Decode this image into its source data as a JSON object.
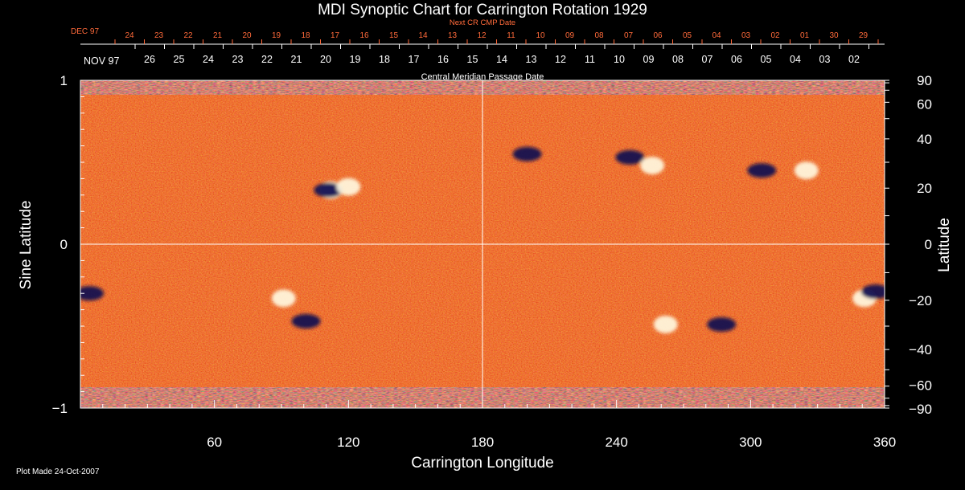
{
  "chart_data": {
    "type": "heatmap",
    "title": "MDI Synoptic Chart for Carrington Rotation 1929",
    "xlabel": "Carrington Longitude",
    "ylabel_left": "Sine Latitude",
    "ylabel_right": "Latitude",
    "x_range": [
      0,
      360
    ],
    "y_range": [
      -1,
      1
    ],
    "x_ticks": [
      60,
      120,
      180,
      240,
      300,
      360
    ],
    "y_ticks_left": [
      "1",
      "0",
      "−1"
    ],
    "y_ticks_right": [
      90,
      60,
      40,
      20,
      0,
      -20,
      -40,
      -60,
      -90
    ],
    "next_cr_label": "Next CR CMP Date",
    "next_cr_month": "DEC 97",
    "next_cr_dates": [
      "24",
      "23",
      "22",
      "21",
      "20",
      "19",
      "18",
      "17",
      "16",
      "15",
      "14",
      "13",
      "12",
      "11",
      "10",
      "09",
      "08",
      "07",
      "06",
      "05",
      "04",
      "03",
      "02",
      "01",
      "30",
      "29"
    ],
    "cmp_label": "Central Meridian Passage Date",
    "cmp_month": "NOV 97",
    "cmp_dates": [
      "26",
      "25",
      "24",
      "23",
      "22",
      "21",
      "20",
      "19",
      "18",
      "17",
      "16",
      "15",
      "14",
      "13",
      "12",
      "11",
      "10",
      "09",
      "08",
      "07",
      "06",
      "05",
      "04",
      "03",
      "02"
    ],
    "grid": "lines at longitude 180 and sine latitude 0",
    "colors": {
      "background": "#000000",
      "field_base": "#e04010",
      "positive_polarity": "#fff8e0",
      "negative_polarity": "#0a0a50",
      "date_top": "#ff6a3a",
      "text": "#ffffff"
    },
    "features": [
      {
        "polarity": "positive",
        "lon": 112,
        "lat": 0.33
      },
      {
        "polarity": "negative",
        "lon": 111,
        "lat": 0.33
      },
      {
        "polarity": "positive",
        "lon": 120,
        "lat": 0.35
      },
      {
        "polarity": "negative",
        "lon": 200,
        "lat": 0.55
      },
      {
        "polarity": "negative",
        "lon": 246,
        "lat": 0.53
      },
      {
        "polarity": "positive",
        "lon": 256,
        "lat": 0.48
      },
      {
        "polarity": "negative",
        "lon": 305,
        "lat": 0.45
      },
      {
        "polarity": "positive",
        "lon": 325,
        "lat": 0.45
      },
      {
        "polarity": "positive",
        "lon": 91,
        "lat": -0.33
      },
      {
        "polarity": "negative",
        "lon": 101,
        "lat": -0.47
      },
      {
        "polarity": "negative",
        "lon": 4,
        "lat": -0.3
      },
      {
        "polarity": "positive",
        "lon": 351,
        "lat": -0.33
      },
      {
        "polarity": "negative",
        "lon": 356,
        "lat": -0.29
      },
      {
        "polarity": "negative",
        "lon": 287,
        "lat": -0.49
      },
      {
        "polarity": "positive",
        "lon": 262,
        "lat": -0.49
      }
    ]
  },
  "footer": {
    "text": "Plot Made 24-Oct-2007"
  }
}
